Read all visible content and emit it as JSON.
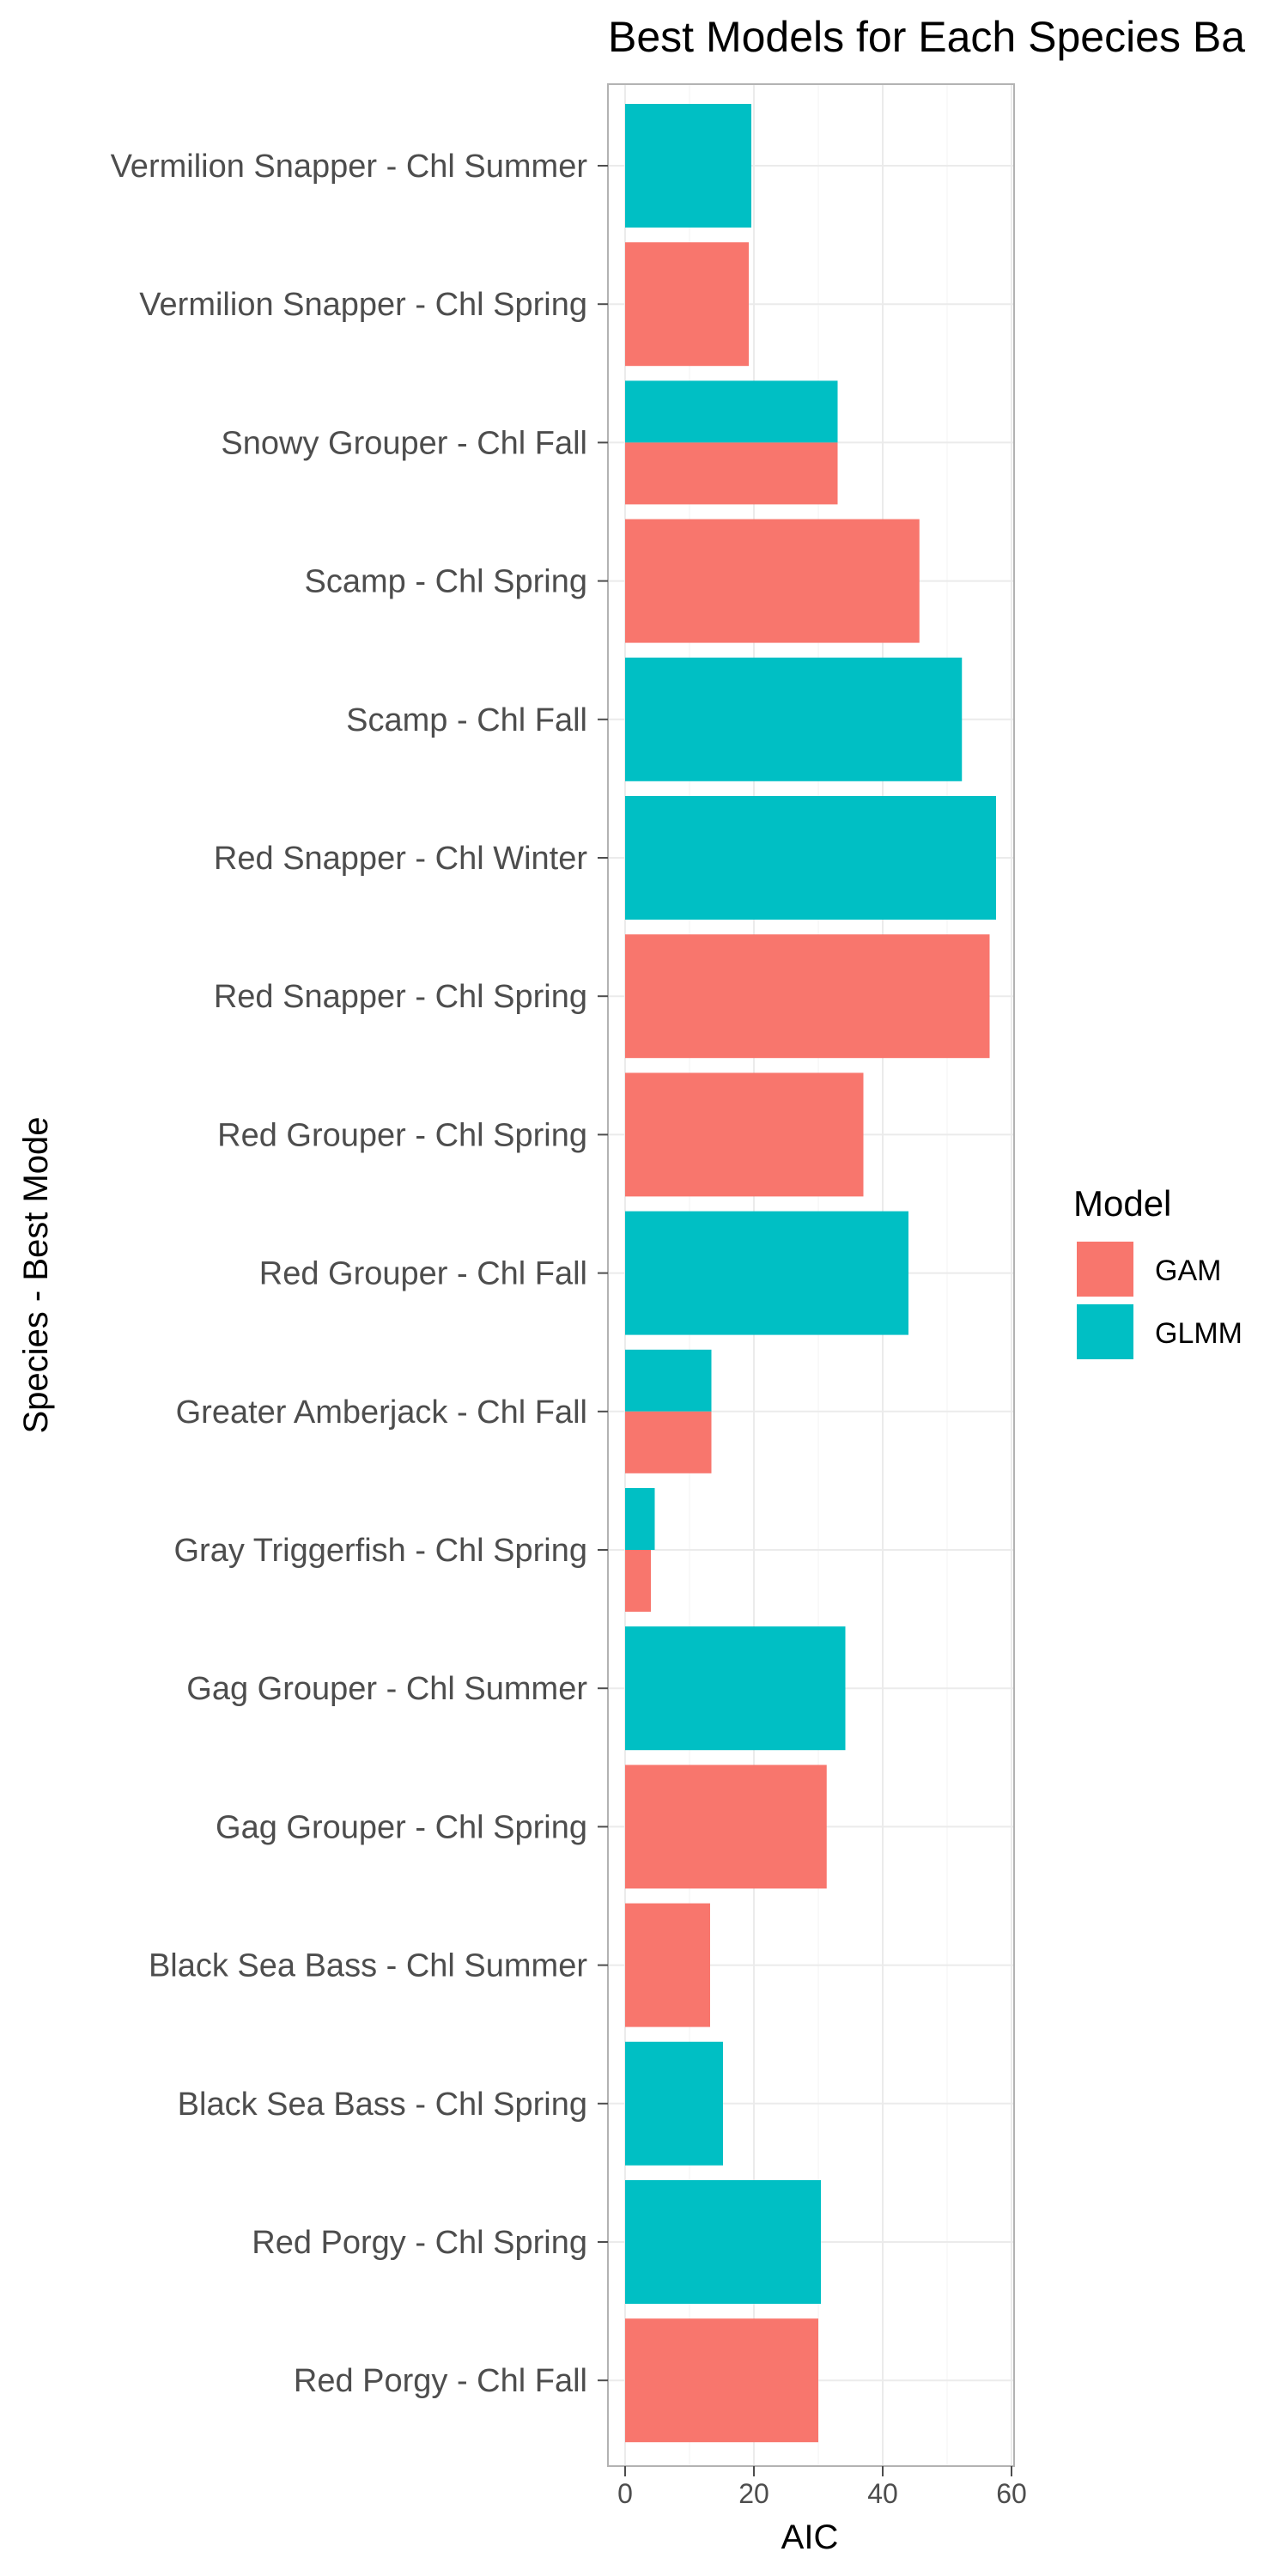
{
  "chart_data": {
    "type": "bar",
    "orientation": "horizontal",
    "title": "Best Models for Each Species Ba",
    "xlabel": "AIC",
    "ylabel": "Species - Best Mode",
    "xlim": [
      0,
      60
    ],
    "x_ticks": [
      0,
      20,
      40,
      60
    ],
    "grid": true,
    "legend": {
      "title": "Model",
      "position": "right",
      "entries": [
        {
          "name": "GAM",
          "color": "#F8766D"
        },
        {
          "name": "GLMM",
          "color": "#00BFC4"
        }
      ]
    },
    "categories": [
      "Vermilion Snapper - Chl Summer",
      "Vermilion Snapper - Chl Spring",
      "Snowy Grouper  - Chl Fall",
      "Scamp - Chl Spring",
      "Scamp - Chl Fall",
      "Red Snapper - Chl Winter",
      "Red Snapper - Chl Spring",
      "Red Grouper - Chl Spring",
      "Red Grouper - Chl Fall",
      "Greater Amberjack - Chl Fall",
      "Gray Triggerfish - Chl Spring",
      "Gag Grouper - Chl Summer",
      "Gag Grouper - Chl Spring",
      "Black Sea Bass - Chl Summer",
      "Black Sea Bass - Chl Spring",
      "Red Porgy - Chl Spring",
      "Red Porgy - Chl Fall"
    ],
    "series": [
      {
        "name": "GAM",
        "values": [
          null,
          19.2,
          33,
          45.7,
          null,
          null,
          56.6,
          37,
          null,
          13.4,
          4,
          null,
          31.3,
          13.2,
          null,
          null,
          30
        ]
      },
      {
        "name": "GLMM",
        "values": [
          19.6,
          null,
          33,
          null,
          52.3,
          57.6,
          null,
          null,
          44,
          13.4,
          4.6,
          34.2,
          null,
          null,
          15.2,
          30.4,
          null
        ]
      }
    ]
  }
}
